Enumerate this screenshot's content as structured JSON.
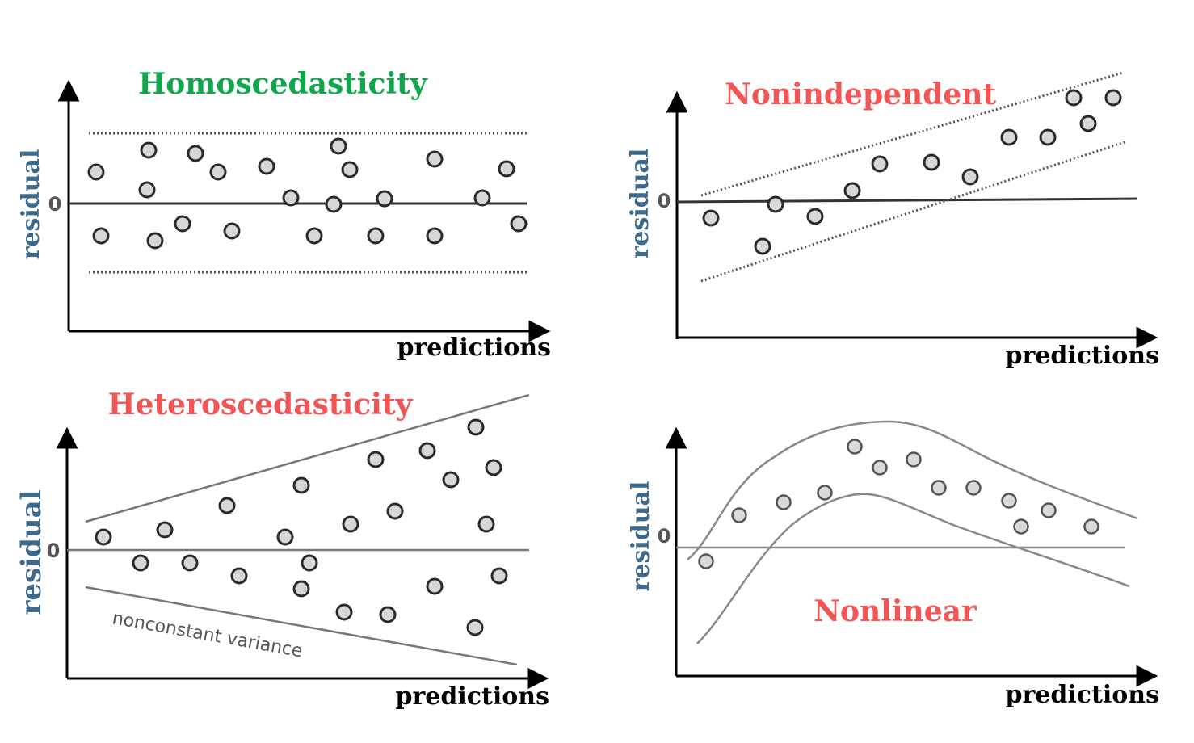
{
  "colors": {
    "good_title": "#10a64c",
    "bad_title": "#f25555",
    "ylabel": "#3d6a8a",
    "xlabel": "#000000",
    "axis": "#000000",
    "zero_line": "#333333",
    "point_stroke": "#2a2a2a"
  },
  "diagrams": [
    {
      "id": "homoscedasticity",
      "title": "Homoscedasticity",
      "title_color": "good_title",
      "xlabel": "predictions",
      "ylabel": "residual",
      "zero_label": "0",
      "annotation": ""
    },
    {
      "id": "nonindependent",
      "title": "Nonindependent",
      "title_color": "bad_title",
      "xlabel": "predictions",
      "ylabel": "residual",
      "zero_label": "0",
      "annotation": ""
    },
    {
      "id": "heteroscedasticity",
      "title": "Heteroscedasticity",
      "title_color": "bad_title",
      "xlabel": "predictions",
      "ylabel": "residual",
      "zero_label": "0",
      "annotation": "nonconstant variance"
    },
    {
      "id": "nonlinear",
      "title": "Nonlinear",
      "title_color": "bad_title",
      "xlabel": "predictions",
      "ylabel": "residual",
      "zero_label": "0",
      "annotation": ""
    }
  ]
}
